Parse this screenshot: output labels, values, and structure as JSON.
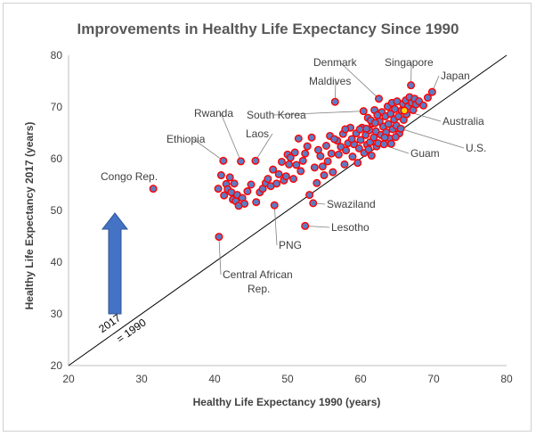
{
  "chart_data": {
    "type": "scatter",
    "title": "Improvements in Healthy Life Expectancy Since 1990",
    "xlabel": "Healthy Life Expectancy 1990 (years)",
    "ylabel": "Healthy Life Expectancy 2017 (years)",
    "xlim": [
      20,
      80
    ],
    "ylim": [
      20,
      80
    ],
    "xticks": [
      "20",
      "30",
      "40",
      "50",
      "60",
      "70",
      "80"
    ],
    "yticks": [
      "20",
      "30",
      "40",
      "50",
      "60",
      "70",
      "80"
    ],
    "reference_line": {
      "label_top": "2017",
      "label_bottom": "= 1990"
    },
    "colors": {
      "marker_fill": "#5b7cc4",
      "marker_edge": "#ff0000",
      "highlight_fill": "#ffd700",
      "arrow": "#4472c4",
      "axis": "#bfbfbf"
    },
    "labeled_points": [
      {
        "name": "Congo Rep.",
        "x": 31.6,
        "y": 54.2
      },
      {
        "name": "Ethiopia",
        "x": 41.2,
        "y": 59.6
      },
      {
        "name": "Rwanda",
        "x": 43.6,
        "y": 59.5
      },
      {
        "name": "Laos",
        "x": 45.6,
        "y": 59.6
      },
      {
        "name": "Maldives",
        "x": 56.5,
        "y": 71.0
      },
      {
        "name": "Denmark",
        "x": 62.5,
        "y": 71.6
      },
      {
        "name": "Singapore",
        "x": 66.9,
        "y": 74.2
      },
      {
        "name": "Japan",
        "x": 69.8,
        "y": 72.9
      },
      {
        "name": "South Korea",
        "x": 60.4,
        "y": 69.2
      },
      {
        "name": "Australia",
        "x": 66.0,
        "y": 69.3
      },
      {
        "name": "U.S.",
        "x": 65.5,
        "y": 65.8
      },
      {
        "name": "Guam",
        "x": 62.4,
        "y": 63.0
      },
      {
        "name": "Swaziland",
        "x": 53.5,
        "y": 51.4
      },
      {
        "name": "Lesotho",
        "x": 52.4,
        "y": 47.0
      },
      {
        "name": "PNG",
        "x": 48.2,
        "y": 51.0
      },
      {
        "name": "Central African Rep.",
        "x": 40.6,
        "y": 44.9
      }
    ],
    "points": [
      [
        31.6,
        54.2
      ],
      [
        40.6,
        44.9
      ],
      [
        40.5,
        54.2
      ],
      [
        40.9,
        56.8
      ],
      [
        41.2,
        59.6
      ],
      [
        41.3,
        52.9
      ],
      [
        41.6,
        55.1
      ],
      [
        41.8,
        54.1
      ],
      [
        42.1,
        56.4
      ],
      [
        42.3,
        53.5
      ],
      [
        42.5,
        52.1
      ],
      [
        42.7,
        55.2
      ],
      [
        42.9,
        51.8
      ],
      [
        43.1,
        53.0
      ],
      [
        43.3,
        50.9
      ],
      [
        43.6,
        59.5
      ],
      [
        43.8,
        52.4
      ],
      [
        44.1,
        51.3
      ],
      [
        44.5,
        53.7
      ],
      [
        45.0,
        55.0
      ],
      [
        45.6,
        59.6
      ],
      [
        45.7,
        51.6
      ],
      [
        46.2,
        53.5
      ],
      [
        46.6,
        54.2
      ],
      [
        47.0,
        55.3
      ],
      [
        47.3,
        56.1
      ],
      [
        47.7,
        54.7
      ],
      [
        48.0,
        57.9
      ],
      [
        48.2,
        51.0
      ],
      [
        48.5,
        55.2
      ],
      [
        48.8,
        57.0
      ],
      [
        49.2,
        59.4
      ],
      [
        49.5,
        55.8
      ],
      [
        49.8,
        56.6
      ],
      [
        50.0,
        60.8
      ],
      [
        50.2,
        58.9
      ],
      [
        50.4,
        60.2
      ],
      [
        50.8,
        56.1
      ],
      [
        51.0,
        61.2
      ],
      [
        51.2,
        58.8
      ],
      [
        51.5,
        63.9
      ],
      [
        51.8,
        57.6
      ],
      [
        52.1,
        59.6
      ],
      [
        52.4,
        61.0
      ],
      [
        52.4,
        47.0
      ],
      [
        52.7,
        62.4
      ],
      [
        53.0,
        53.0
      ],
      [
        53.3,
        64.1
      ],
      [
        53.5,
        51.4
      ],
      [
        53.7,
        58.3
      ],
      [
        54.0,
        55.3
      ],
      [
        54.2,
        61.7
      ],
      [
        54.5,
        60.5
      ],
      [
        54.8,
        58.5
      ],
      [
        55.0,
        56.8
      ],
      [
        55.3,
        62.5
      ],
      [
        55.5,
        59.5
      ],
      [
        55.8,
        64.4
      ],
      [
        56.0,
        61.0
      ],
      [
        56.2,
        57.4
      ],
      [
        56.5,
        71.0
      ],
      [
        56.8,
        63.5
      ],
      [
        57.0,
        60.8
      ],
      [
        57.3,
        62.3
      ],
      [
        57.6,
        64.8
      ],
      [
        57.8,
        58.9
      ],
      [
        58.0,
        61.6
      ],
      [
        58.3,
        63.0
      ],
      [
        58.6,
        66.0
      ],
      [
        58.9,
        60.4
      ],
      [
        59.1,
        62.8
      ],
      [
        59.4,
        64.9
      ],
      [
        59.6,
        59.2
      ],
      [
        59.8,
        62.0
      ],
      [
        60.0,
        63.6
      ],
      [
        60.2,
        66.0
      ],
      [
        60.4,
        69.2
      ],
      [
        60.5,
        61.1
      ],
      [
        60.7,
        64.6
      ],
      [
        60.9,
        62.7
      ],
      [
        61.0,
        67.9
      ],
      [
        61.2,
        65.5
      ],
      [
        61.3,
        63.2
      ],
      [
        61.5,
        60.6
      ],
      [
        61.6,
        66.8
      ],
      [
        61.8,
        64.1
      ],
      [
        61.9,
        69.4
      ],
      [
        62.1,
        65.3
      ],
      [
        62.2,
        62.4
      ],
      [
        62.4,
        63.0
      ],
      [
        62.5,
        71.6
      ],
      [
        62.6,
        67.2
      ],
      [
        62.8,
        64.6
      ],
      [
        62.9,
        69.0
      ],
      [
        63.1,
        66.2
      ],
      [
        63.2,
        62.8
      ],
      [
        63.4,
        68.2
      ],
      [
        63.5,
        65.1
      ],
      [
        63.7,
        70.1
      ],
      [
        63.8,
        66.7
      ],
      [
        64.0,
        63.9
      ],
      [
        64.1,
        68.7
      ],
      [
        64.3,
        70.8
      ],
      [
        64.4,
        65.7
      ],
      [
        64.6,
        67.6
      ],
      [
        64.7,
        69.6
      ],
      [
        64.9,
        66.4
      ],
      [
        65.0,
        71.1
      ],
      [
        65.2,
        68.2
      ],
      [
        65.3,
        64.9
      ],
      [
        65.5,
        65.8
      ],
      [
        65.6,
        69.3
      ],
      [
        65.8,
        70.6
      ],
      [
        65.9,
        67.5
      ],
      [
        66.0,
        69.3
      ],
      [
        66.2,
        71.3
      ],
      [
        66.3,
        68.6
      ],
      [
        66.5,
        70.1
      ],
      [
        66.7,
        71.9
      ],
      [
        66.9,
        74.2
      ],
      [
        67.0,
        70.8
      ],
      [
        67.2,
        69.4
      ],
      [
        67.4,
        71.6
      ],
      [
        67.6,
        70.5
      ],
      [
        68.0,
        71.1
      ],
      [
        68.6,
        70.3
      ],
      [
        69.2,
        71.8
      ],
      [
        69.8,
        72.9
      ],
      [
        61.4,
        67.4
      ],
      [
        62.0,
        66.9
      ],
      [
        60.8,
        65.8
      ],
      [
        59.9,
        65.7
      ],
      [
        61.1,
        61.8
      ],
      [
        62.3,
        68.4
      ],
      [
        63.3,
        64.1
      ],
      [
        64.2,
        62.9
      ],
      [
        64.8,
        64.2
      ],
      [
        58.8,
        63.8
      ],
      [
        57.9,
        65.7
      ],
      [
        56.4,
        63.8
      ]
    ],
    "highlight_point": {
      "name": "Australia",
      "x": 66.0,
      "y": 69.3
    }
  }
}
